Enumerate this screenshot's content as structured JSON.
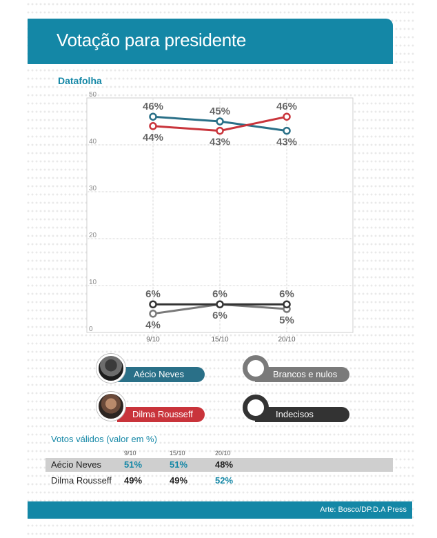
{
  "header": {
    "title": "Votação para presidente"
  },
  "source": "Datafolha",
  "chart_data": {
    "type": "line",
    "categories": [
      "9/10",
      "15/10",
      "20/10"
    ],
    "ylim": [
      0,
      50
    ],
    "yticks": [
      0,
      10,
      20,
      30,
      40,
      50
    ],
    "grid": true,
    "series": [
      {
        "name": "Aécio Neves",
        "values": [
          46,
          45,
          43
        ],
        "labels": [
          "46%",
          "45%",
          "43%"
        ],
        "color": "#2a7088",
        "label_pos": [
          "above",
          "above",
          "below"
        ]
      },
      {
        "name": "Dilma Rousseff",
        "values": [
          44,
          43,
          46
        ],
        "labels": [
          "44%",
          "43%",
          "46%"
        ],
        "color": "#c9343b",
        "label_pos": [
          "below",
          "below",
          "above"
        ]
      },
      {
        "name": "Brancos e nulos",
        "values": [
          4,
          6,
          5
        ],
        "labels": [
          "4%",
          "6%",
          "5%"
        ],
        "color": "#7a7a7a",
        "label_pos": [
          "below",
          "below",
          "below"
        ]
      },
      {
        "name": "Indecisos",
        "values": [
          6,
          6,
          6
        ],
        "labels": [
          "6%",
          "6%",
          "6%"
        ],
        "color": "#333333",
        "label_pos": [
          "above",
          "above",
          "above"
        ]
      }
    ]
  },
  "legend": {
    "aecio": "Aécio Neves",
    "dilma": "Dilma Rousseff",
    "brancos": "Brancos e nulos",
    "indecisos": "Indecisos"
  },
  "table": {
    "title": "Votos válidos (valor em %)",
    "columns": [
      "9/10",
      "15/10",
      "20/10"
    ],
    "rows": [
      {
        "name": "Aécio Neves",
        "values": [
          "51%",
          "51%",
          "48%"
        ]
      },
      {
        "name": "Dilma Rousseff",
        "values": [
          "49%",
          "49%",
          "52%"
        ]
      }
    ]
  },
  "footer": {
    "credit": "Arte: Bosco/DP.D.A Press"
  }
}
